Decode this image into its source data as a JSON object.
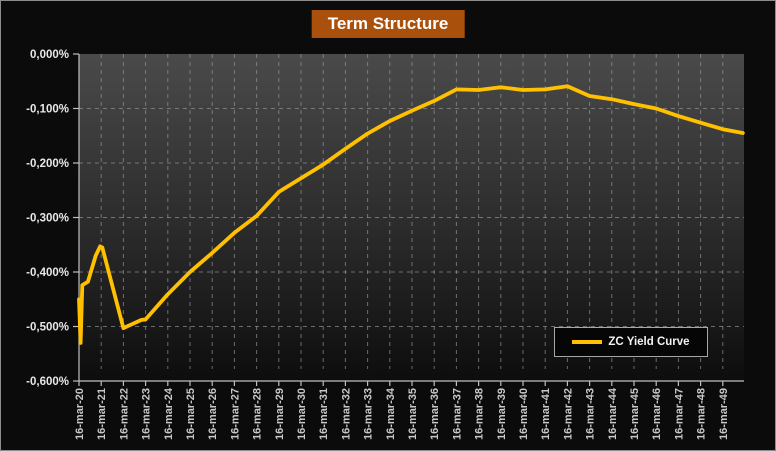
{
  "title": "Term Structure",
  "legend": {
    "label": "ZC Yield Curve"
  },
  "colors": {
    "background": "#0B0B0B",
    "line": "#FFC000",
    "title_bg": "#A9500C",
    "title_text": "#FFFFFF",
    "plot_gradient_top": "#4A4A4A",
    "plot_gradient_mid": "#2A2A2A",
    "plot_gradient_bottom": "#0D0D0D",
    "grid": "#9A9A9A",
    "axis": "#BFBFBF",
    "y_tick_label": "#E8E8E8",
    "x_tick_label": "#C8C8C8"
  },
  "chart_data": {
    "type": "line",
    "title": "Term Structure",
    "xlabel": "",
    "ylabel": "",
    "y_unit": "%",
    "ylim": [
      -0.6,
      0.0
    ],
    "grid": "dashed, both axes",
    "legend_position": "lower right",
    "legend_entries": [
      "ZC Yield Curve"
    ],
    "y_tick_labels": [
      "0,000%",
      "-0,100%",
      "-0,200%",
      "-0,300%",
      "-0,400%",
      "-0,500%",
      "-0,600%"
    ],
    "y_tick_values": [
      0.0,
      -0.1,
      -0.2,
      -0.3,
      -0.4,
      -0.5,
      -0.6
    ],
    "x_tick_labels": [
      "16-mar-20",
      "16-mar-21",
      "16-mar-22",
      "16-mar-23",
      "16-mar-24",
      "16-mar-25",
      "16-mar-26",
      "16-mar-27",
      "16-mar-28",
      "16-mar-29",
      "16-mar-30",
      "16-mar-31",
      "16-mar-32",
      "16-mar-33",
      "16-mar-34",
      "16-mar-35",
      "16-mar-36",
      "16-mar-37",
      "16-mar-38",
      "16-mar-39",
      "16-mar-40",
      "16-mar-41",
      "16-mar-42",
      "16-mar-43",
      "16-mar-44",
      "16-mar-45",
      "16-mar-46",
      "16-mar-47",
      "16-mar-48",
      "16-mar-49"
    ],
    "x_tick_years": [
      2020,
      2021,
      2022,
      2023,
      2024,
      2025,
      2026,
      2027,
      2028,
      2029,
      2030,
      2031,
      2032,
      2033,
      2034,
      2035,
      2036,
      2037,
      2038,
      2039,
      2040,
      2041,
      2042,
      2043,
      2044,
      2045,
      2046,
      2047,
      2048,
      2049
    ],
    "series": [
      {
        "name": "ZC Yield Curve",
        "color": "#FFC000",
        "points": [
          [
            2020.0,
            -0.45
          ],
          [
            2020.07,
            -0.53
          ],
          [
            2020.15,
            -0.424
          ],
          [
            2020.4,
            -0.418
          ],
          [
            2020.75,
            -0.37
          ],
          [
            2020.95,
            -0.353
          ],
          [
            2021.05,
            -0.355
          ],
          [
            2022.0,
            -0.503
          ],
          [
            2022.8,
            -0.488
          ],
          [
            2023.0,
            -0.487
          ],
          [
            2024.0,
            -0.441
          ],
          [
            2025.0,
            -0.4
          ],
          [
            2026.0,
            -0.365
          ],
          [
            2027.0,
            -0.328
          ],
          [
            2028.0,
            -0.297
          ],
          [
            2029.0,
            -0.253
          ],
          [
            2030.0,
            -0.228
          ],
          [
            2031.0,
            -0.203
          ],
          [
            2032.0,
            -0.174
          ],
          [
            2033.0,
            -0.146
          ],
          [
            2034.0,
            -0.123
          ],
          [
            2035.0,
            -0.104
          ],
          [
            2036.0,
            -0.086
          ],
          [
            2037.0,
            -0.065
          ],
          [
            2038.0,
            -0.066
          ],
          [
            2039.0,
            -0.061
          ],
          [
            2040.0,
            -0.066
          ],
          [
            2041.0,
            -0.065
          ],
          [
            2042.0,
            -0.059
          ],
          [
            2043.0,
            -0.077
          ],
          [
            2044.0,
            -0.083
          ],
          [
            2045.0,
            -0.092
          ],
          [
            2046.0,
            -0.1
          ],
          [
            2047.0,
            -0.114
          ],
          [
            2048.0,
            -0.126
          ],
          [
            2049.0,
            -0.138
          ],
          [
            2049.9,
            -0.145
          ]
        ]
      }
    ]
  }
}
